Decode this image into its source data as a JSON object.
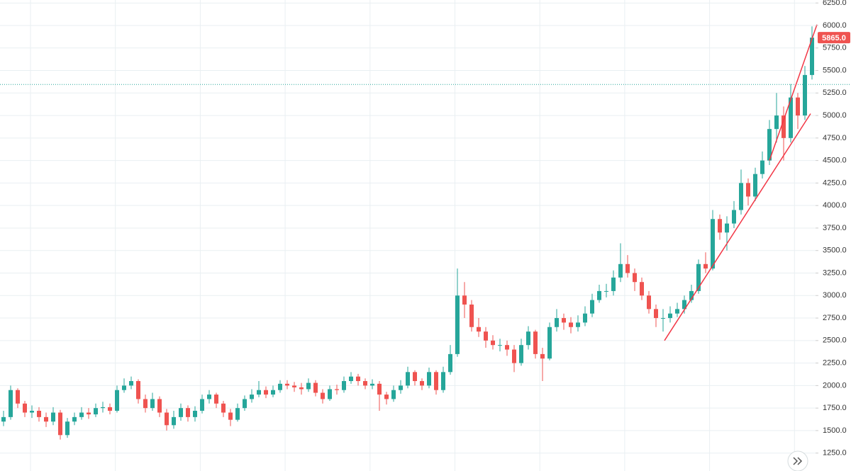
{
  "chart_data": {
    "type": "candlestick",
    "up_color": "#26a69a",
    "down_color": "#ef5350",
    "open": [
      1600,
      1650,
      1950,
      1800,
      1700,
      1720,
      1650,
      1600,
      1700,
      1450,
      1600,
      1650,
      1700,
      1680,
      1750,
      1760,
      1720,
      1950,
      2000,
      2050,
      1850,
      1750,
      1850,
      1700,
      1560,
      1650,
      1750,
      1650,
      1720,
      1850,
      1900,
      1800,
      1700,
      1620,
      1750,
      1850,
      1900,
      1950,
      1900,
      1950,
      2020,
      2000,
      1980,
      1960,
      2030,
      1920,
      1850,
      1960,
      1950,
      2050,
      2100,
      2050,
      2000,
      2020,
      1900,
      1850,
      1950,
      2000,
      2150,
      2050,
      2000,
      2150,
      1950,
      2150,
      2350,
      3000,
      2900,
      2650,
      2600,
      2500,
      2450,
      2450,
      2400,
      2250,
      2450,
      2600,
      2350,
      2300,
      2650,
      2750,
      2700,
      2650,
      2700,
      2800,
      2950,
      3050,
      3050,
      3200,
      3350,
      3250,
      3150,
      3000,
      2850,
      2750,
      2750,
      2800,
      2850,
      2950,
      3050,
      3350,
      3300,
      3850,
      3700,
      3800,
      3950,
      4250,
      4100,
      4350,
      4500,
      4850,
      5000,
      4750,
      5200,
      5000,
      5450
    ],
    "high": [
      1720,
      2000,
      1970,
      1830,
      1780,
      1760,
      1700,
      1760,
      1730,
      1640,
      1700,
      1760,
      1750,
      1800,
      1820,
      1800,
      2000,
      2080,
      2100,
      2070,
      1900,
      1920,
      1880,
      1740,
      1720,
      1800,
      1780,
      1770,
      1900,
      1950,
      1920,
      1830,
      1740,
      1800,
      1890,
      1960,
      2050,
      1990,
      2000,
      2060,
      2060,
      2040,
      2030,
      2080,
      2060,
      1960,
      2000,
      2010,
      2100,
      2150,
      2130,
      2080,
      2070,
      2050,
      1930,
      2000,
      2060,
      2210,
      2170,
      2080,
      2200,
      2170,
      2210,
      2450,
      3300,
      3150,
      2950,
      2750,
      2650,
      2560,
      2520,
      2500,
      2450,
      2520,
      2660,
      2620,
      2420,
      2700,
      2850,
      2800,
      2760,
      2780,
      2880,
      3020,
      3120,
      3130,
      3280,
      3580,
      3450,
      3300,
      3200,
      3050,
      2900,
      2850,
      2880,
      2920,
      3000,
      3120,
      3400,
      3480,
      3950,
      3900,
      3880,
      4050,
      4400,
      4300,
      4420,
      4600,
      4950,
      5250,
      5100,
      5350,
      5250,
      5550,
      5990
    ],
    "low": [
      1550,
      1620,
      1750,
      1650,
      1640,
      1600,
      1540,
      1560,
      1400,
      1420,
      1560,
      1620,
      1630,
      1650,
      1700,
      1680,
      1700,
      1920,
      1960,
      1800,
      1700,
      1720,
      1650,
      1500,
      1520,
      1610,
      1600,
      1600,
      1690,
      1800,
      1750,
      1650,
      1550,
      1600,
      1720,
      1810,
      1870,
      1860,
      1870,
      1920,
      1960,
      1930,
      1900,
      1930,
      1880,
      1800,
      1830,
      1900,
      1920,
      2020,
      2000,
      1960,
      1960,
      1720,
      1790,
      1820,
      1910,
      1970,
      2000,
      1950,
      1970,
      1900,
      1920,
      2120,
      2320,
      2750,
      2600,
      2540,
      2420,
      2400,
      2380,
      2330,
      2150,
      2220,
      2400,
      2300,
      2050,
      2280,
      2600,
      2620,
      2580,
      2600,
      2660,
      2760,
      2920,
      2980,
      3000,
      3150,
      3200,
      3050,
      2950,
      2800,
      2650,
      2600,
      2700,
      2760,
      2800,
      2920,
      3020,
      3250,
      3280,
      3620,
      3500,
      3750,
      3900,
      4000,
      4050,
      4300,
      4450,
      4700,
      4500,
      4700,
      4850,
      4950,
      5400
    ],
    "close": [
      1650,
      1950,
      1800,
      1700,
      1720,
      1650,
      1600,
      1700,
      1450,
      1600,
      1650,
      1700,
      1680,
      1750,
      1760,
      1720,
      1950,
      2000,
      2050,
      1850,
      1750,
      1850,
      1700,
      1560,
      1650,
      1750,
      1650,
      1720,
      1850,
      1900,
      1800,
      1700,
      1620,
      1750,
      1850,
      1900,
      1950,
      1900,
      1950,
      2020,
      2000,
      1980,
      1960,
      2030,
      1920,
      1850,
      1960,
      1950,
      2050,
      2100,
      2050,
      2000,
      2020,
      1900,
      1850,
      1950,
      2000,
      2150,
      2050,
      2000,
      2150,
      1950,
      2150,
      2350,
      3000,
      2900,
      2650,
      2600,
      2500,
      2450,
      2450,
      2400,
      2250,
      2450,
      2600,
      2350,
      2300,
      2650,
      2750,
      2700,
      2650,
      2700,
      2800,
      2950,
      3050,
      3050,
      3200,
      3350,
      3250,
      3150,
      3000,
      2850,
      2750,
      2750,
      2800,
      2850,
      2950,
      3050,
      3350,
      3300,
      3850,
      3700,
      3800,
      3950,
      4250,
      4100,
      4350,
      4500,
      4850,
      5000,
      4750,
      5200,
      5000,
      5450,
      5865
    ],
    "ylim": [
      1051,
      6283
    ],
    "yticks": [
      {
        "value": 1250,
        "label": "1250.0"
      },
      {
        "value": 1500,
        "label": "1500.0"
      },
      {
        "value": 1750,
        "label": "1750.0"
      },
      {
        "value": 2000,
        "label": "2000.0"
      },
      {
        "value": 2250,
        "label": "2250.0"
      },
      {
        "value": 2500,
        "label": "2500.0"
      },
      {
        "value": 2750,
        "label": "2750.0"
      },
      {
        "value": 3000,
        "label": "3000.0"
      },
      {
        "value": 3250,
        "label": "3250.0"
      },
      {
        "value": 3500,
        "label": "3500.0"
      },
      {
        "value": 3750,
        "label": "3750.0"
      },
      {
        "value": 4000,
        "label": "4000.0"
      },
      {
        "value": 4250,
        "label": "4250.0"
      },
      {
        "value": 4500,
        "label": "4500.0"
      },
      {
        "value": 4750,
        "label": "4750.0"
      },
      {
        "value": 5000,
        "label": "5000.0"
      },
      {
        "value": 5250,
        "label": "5250.0"
      },
      {
        "value": 5500,
        "label": "5500.0"
      },
      {
        "value": 5750,
        "label": "5750.0"
      },
      {
        "value": 6000,
        "label": "6000.0"
      },
      {
        "value": 6250,
        "label": "6250.0"
      }
    ],
    "grid": true,
    "last_price": {
      "value": 5865,
      "label": "5865.0",
      "color": "#ef5350"
    },
    "price_line": {
      "value": 5345,
      "color": "#26a69a"
    },
    "trend_lines": [
      {
        "color": "#f23645",
        "x": [
          93.2,
          113.8
        ],
        "y": [
          2500,
          5020
        ]
      },
      {
        "color": "#f23645",
        "x": [
          108,
          114.7
        ],
        "y": [
          4500,
          6010
        ]
      }
    ]
  }
}
